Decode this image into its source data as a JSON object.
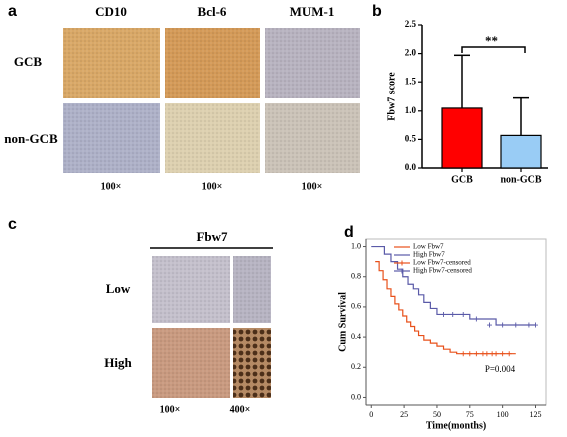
{
  "figure": {
    "panel_a": {
      "label": "a",
      "columns": [
        "CD10",
        "Bcl-6",
        "MUM-1"
      ],
      "rows": [
        "GCB",
        "non-GCB"
      ],
      "magnifications": [
        "100×",
        "100×",
        "100×"
      ]
    },
    "panel_b": {
      "label": "b"
    },
    "panel_c": {
      "label": "c",
      "title": "Fbw7",
      "rows": [
        "Low",
        "High"
      ],
      "magnifications": [
        "100×",
        "400×"
      ]
    },
    "panel_d": {
      "label": "d"
    }
  },
  "chart_data": [
    {
      "type": "bar",
      "ylabel": "Fbw7 score",
      "categories": [
        "GCB",
        "non-GCB"
      ],
      "values": [
        1.05,
        0.57
      ],
      "errors": [
        0.92,
        0.66
      ],
      "colors": [
        "#ff0000",
        "#99ccf5"
      ],
      "annotation": "**",
      "ylim": [
        0,
        2.5
      ],
      "yticks": [
        {
          "value": 0,
          "label": "0.0"
        },
        {
          "value": 0.5,
          "label": "0.5"
        },
        {
          "value": 1,
          "label": "1.0"
        },
        {
          "value": 1.5,
          "label": "1.5"
        },
        {
          "value": 2,
          "label": "2.0"
        },
        {
          "value": 2.5,
          "label": "2.5"
        }
      ]
    },
    {
      "type": "line",
      "step": true,
      "xlabel": "Time(months)",
      "ylabel": "Cum Survival",
      "annotation": "P=0.004",
      "legend": "upper left",
      "xlim": [
        -4,
        133
      ],
      "ylim": [
        -0.05,
        1.05
      ],
      "xticks": [
        0,
        25,
        50,
        75,
        100,
        125
      ],
      "yticks": [
        {
          "value": 0,
          "label": "0.0"
        },
        {
          "value": 0.2,
          "label": "0.2"
        },
        {
          "value": 0.4,
          "label": "0.4"
        },
        {
          "value": 0.6,
          "label": "0.6"
        },
        {
          "value": 0.8,
          "label": "0.8"
        },
        {
          "value": 1,
          "label": "1.0"
        }
      ],
      "series": [
        {
          "name": "Low Fbw7",
          "color": "#e8501a",
          "x": [
            3,
            6,
            9,
            12,
            15,
            18,
            21,
            24,
            27,
            30,
            33,
            36,
            40,
            45,
            50,
            55,
            60,
            65,
            110
          ],
          "values": [
            0.9,
            0.84,
            0.78,
            0.72,
            0.67,
            0.62,
            0.58,
            0.54,
            0.5,
            0.47,
            0.44,
            0.41,
            0.38,
            0.36,
            0.34,
            0.32,
            0.3,
            0.29,
            0.29
          ]
        },
        {
          "name": "High Fbw7",
          "color": "#5a5aa8",
          "x": [
            0,
            10,
            15,
            20,
            24,
            28,
            32,
            36,
            40,
            45,
            50,
            58,
            75,
            95,
            125
          ],
          "values": [
            1.0,
            0.95,
            0.9,
            0.85,
            0.8,
            0.75,
            0.72,
            0.68,
            0.63,
            0.59,
            0.55,
            0.55,
            0.52,
            0.48,
            0.48
          ]
        },
        {
          "name": "Low Fbw7-censored",
          "color": "#e8501a",
          "marker": "+",
          "x": [
            70,
            75,
            80,
            85,
            88,
            92,
            95,
            100,
            105
          ],
          "values": [
            0.29,
            0.29,
            0.29,
            0.29,
            0.29,
            0.29,
            0.29,
            0.29,
            0.29
          ]
        },
        {
          "name": "High Fbw7-censored",
          "color": "#5a5aa8",
          "marker": "+",
          "x": [
            55,
            62,
            70,
            80,
            90,
            100,
            110,
            120,
            125
          ],
          "values": [
            0.55,
            0.55,
            0.55,
            0.52,
            0.48,
            0.48,
            0.48,
            0.48,
            0.48
          ]
        }
      ]
    }
  ]
}
